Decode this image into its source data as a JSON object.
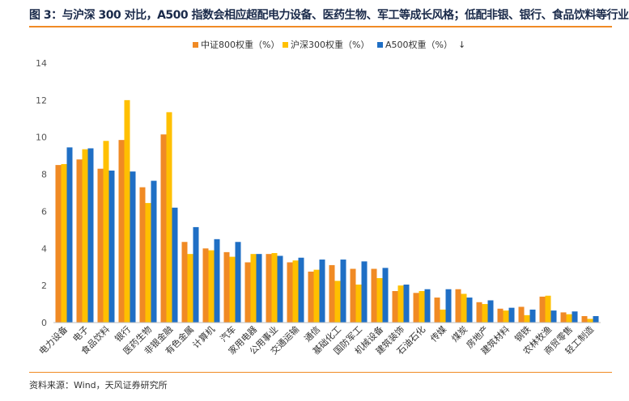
{
  "header": {
    "title": "图 3：与沪深 300 对比，A500 指数会相应超配电力设备、医药生物、军工等成长风格；低配非银、银行、食品饮料等行业"
  },
  "footer": {
    "source": "资料来源：Wind，天风证券研究所"
  },
  "colors": {
    "series_1": "#f08a24",
    "series_2": "#ffc000",
    "series_3": "#1f6fc5",
    "accent_rule": "#f08a24"
  },
  "chart_data": {
    "type": "bar",
    "title": "",
    "xlabel": "",
    "ylabel": "",
    "ylim": [
      0,
      14
    ],
    "yticks": [
      "0",
      "2",
      "4",
      "6",
      "8",
      "10",
      "12",
      "14"
    ],
    "grid": false,
    "legend_position": "top",
    "categories": [
      "电力设备",
      "电子",
      "食品饮料",
      "银行",
      "医药生物",
      "非银金融",
      "有色金属",
      "计算机",
      "汽车",
      "家用电器",
      "公用事业",
      "交通运输",
      "通信",
      "基础化工",
      "国防军工",
      "机械设备",
      "建筑装饰",
      "石油石化",
      "传媒",
      "煤炭",
      "房地产",
      "建筑材料",
      "钢铁",
      "农林牧渔",
      "商贸零售",
      "轻工制造"
    ],
    "series": [
      {
        "name": "中证800权重（%）",
        "values": [
          8.5,
          8.8,
          8.3,
          9.85,
          7.3,
          10.15,
          4.35,
          4.0,
          3.8,
          3.25,
          3.7,
          3.25,
          2.75,
          3.1,
          2.9,
          2.9,
          1.7,
          1.6,
          1.35,
          1.8,
          1.1,
          0.75,
          0.85,
          1.4,
          0.55,
          0.35
        ]
      },
      {
        "name": "沪深300权重（%）",
        "values": [
          8.55,
          9.35,
          9.8,
          12.0,
          6.45,
          11.35,
          3.7,
          3.9,
          3.55,
          3.7,
          3.75,
          3.35,
          2.85,
          2.25,
          2.05,
          2.4,
          2.0,
          1.7,
          0.7,
          1.55,
          1.0,
          0.65,
          0.4,
          1.45,
          0.45,
          0.2
        ]
      },
      {
        "name": "A500权重（%）",
        "values": [
          9.45,
          9.4,
          8.2,
          8.15,
          7.65,
          6.2,
          5.15,
          4.5,
          4.35,
          3.7,
          3.6,
          3.5,
          3.4,
          3.4,
          3.3,
          2.95,
          2.05,
          1.8,
          1.8,
          1.35,
          1.2,
          0.8,
          0.7,
          0.65,
          0.6,
          0.35
        ]
      }
    ],
    "legend_suffix": "↓"
  }
}
